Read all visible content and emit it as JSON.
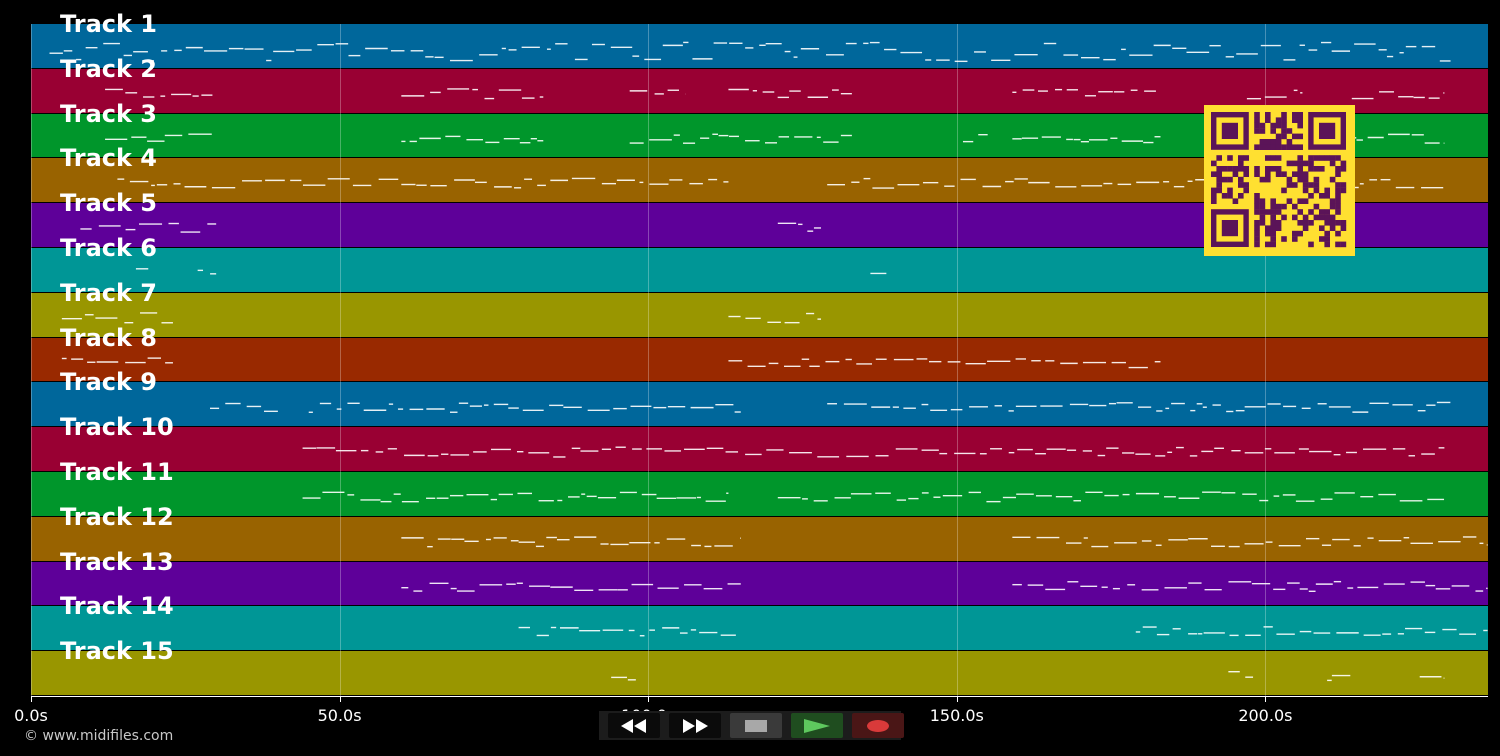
{
  "tracks": [
    {
      "label": "Track 1",
      "color": "#00679b"
    },
    {
      "label": "Track 2",
      "color": "#990033"
    },
    {
      "label": "Track 3",
      "color": "#00962b"
    },
    {
      "label": "Track 4",
      "color": "#996300"
    },
    {
      "label": "Track 5",
      "color": "#5e0099"
    },
    {
      "label": "Track 6",
      "color": "#009696"
    },
    {
      "label": "Track 7",
      "color": "#999600"
    },
    {
      "label": "Track 8",
      "color": "#992900"
    },
    {
      "label": "Track 9",
      "color": "#00679b"
    },
    {
      "label": "Track 10",
      "color": "#990033"
    },
    {
      "label": "Track 11",
      "color": "#00962b"
    },
    {
      "label": "Track 12",
      "color": "#996300"
    },
    {
      "label": "Track 13",
      "color": "#5e0099"
    },
    {
      "label": "Track 14",
      "color": "#009696"
    },
    {
      "label": "Track 15",
      "color": "#999600"
    }
  ],
  "timeline": {
    "ticks": [
      "0.0s",
      "50.0s",
      "100.0s",
      "150.0s",
      "200.0s"
    ],
    "tick_seconds": [
      0,
      50,
      100,
      150,
      200
    ],
    "max_seconds": 236
  },
  "controls": {
    "rewind_icon": "rewind-icon",
    "forward_icon": "fast-forward-icon",
    "stop_icon": "stop-icon",
    "play_icon": "play-icon",
    "record_icon": "record-icon"
  },
  "copyright": "© www.midifiles.com",
  "qr_colors": {
    "dark": "#5b1458",
    "light": "#ffe031"
  }
}
